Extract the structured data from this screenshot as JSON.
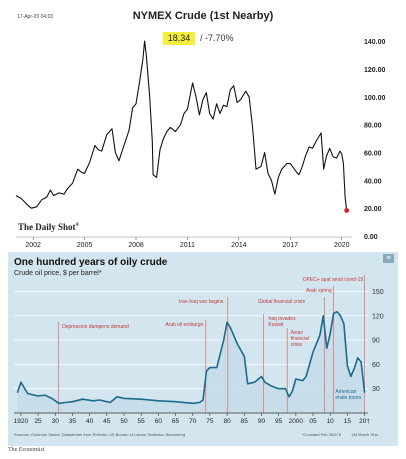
{
  "top": {
    "date": "17-Apr-20 04:03",
    "title": "NYMEX Crude (1st Nearby)",
    "last": "18.34",
    "change": "/ -7.70%",
    "watermark": "The Daily Shot",
    "watermark_tm": "®"
  },
  "bottom": {
    "title": "One hundred years of oily crude",
    "subtitle": "Crude oil price, $ per barrel*",
    "source": "Sources: Goldman Sachs; Datastream from Refinitiv; US Bureau of Labour Statistics; Bloomberg",
    "footnote": "*Constant Feb 2020 $",
    "asof": "†At March 31st",
    "credit": "The Economist",
    "corner_mark": "≡"
  },
  "chart_data": [
    {
      "type": "line",
      "title": "NYMEX Crude (1st Nearby)",
      "x_ticks": [
        "2002",
        "2005",
        "2008",
        "2011",
        "2014",
        "2017",
        "2020"
      ],
      "y_ticks": [
        "0.00",
        "20.00",
        "40.00",
        "60.00",
        "80.00",
        "100.00",
        "120.00",
        "140.00"
      ],
      "xlim": [
        2001.0,
        2020.6
      ],
      "ylim": [
        0,
        148
      ],
      "grid": false,
      "colors": {
        "line": "#111111",
        "highlight": "#f5ee3c",
        "last_point": "#d21e1e"
      },
      "series": [
        {
          "x": [
            2001.0,
            2001.3,
            2001.7,
            2001.9,
            2002.2,
            2002.5,
            2002.8,
            2003.0,
            2003.2,
            2003.5,
            2003.8,
            2004.0,
            2004.3,
            2004.6,
            2004.8,
            2005.0,
            2005.3,
            2005.6,
            2005.8,
            2006.0,
            2006.3,
            2006.6,
            2006.8,
            2007.0,
            2007.3,
            2007.6,
            2007.8,
            2008.0,
            2008.2,
            2008.4,
            2008.5,
            2008.6,
            2008.8,
            2008.95,
            2009.0,
            2009.2,
            2009.4,
            2009.6,
            2009.8,
            2010.0,
            2010.3,
            2010.6,
            2010.8,
            2011.0,
            2011.3,
            2011.5,
            2011.7,
            2011.9,
            2012.1,
            2012.3,
            2012.5,
            2012.7,
            2012.9,
            2013.1,
            2013.3,
            2013.5,
            2013.7,
            2013.9,
            2014.1,
            2014.4,
            2014.6,
            2014.8,
            2015.0,
            2015.3,
            2015.5,
            2015.7,
            2015.9,
            2016.1,
            2016.3,
            2016.5,
            2016.8,
            2017.0,
            2017.3,
            2017.5,
            2017.7,
            2017.9,
            2018.1,
            2018.3,
            2018.5,
            2018.8,
            2018.95,
            2019.1,
            2019.3,
            2019.5,
            2019.7,
            2019.9,
            2020.0,
            2020.1,
            2020.2,
            2020.29
          ],
          "y": [
            29,
            27,
            22,
            20,
            21,
            26,
            28,
            33,
            29,
            31,
            30,
            34,
            38,
            48,
            46,
            45,
            53,
            65,
            62,
            61,
            73,
            77,
            60,
            54,
            65,
            76,
            92,
            95,
            110,
            127,
            140,
            130,
            100,
            68,
            44,
            42,
            62,
            70,
            75,
            78,
            75,
            80,
            88,
            91,
            110,
            100,
            87,
            98,
            103,
            88,
            84,
            95,
            88,
            94,
            93,
            105,
            108,
            96,
            98,
            104,
            100,
            78,
            48,
            50,
            60,
            45,
            40,
            30,
            42,
            48,
            52,
            52,
            47,
            44,
            50,
            58,
            64,
            63,
            68,
            74,
            48,
            57,
            63,
            57,
            56,
            61,
            59,
            52,
            28,
            18.34
          ]
        }
      ]
    },
    {
      "type": "area",
      "title": "One hundred years of oily crude",
      "subtitle": "Crude oil price, $ per barrel*",
      "x_ticks": [
        "1920",
        "25",
        "30",
        "35",
        "40",
        "45",
        "50",
        "55",
        "60",
        "65",
        "70",
        "75",
        "80",
        "85",
        "90",
        "95",
        "2000",
        "05",
        "10",
        "15",
        "20†"
      ],
      "y_ticks": [
        "30",
        "60",
        "90",
        "120",
        "150"
      ],
      "xlim": [
        1918,
        2021
      ],
      "ylim": [
        0,
        158
      ],
      "grid": true,
      "colors": {
        "line": "#1c6a8c",
        "area": "#c5dde9",
        "annotation": "#e06868",
        "background": "#d3e5ee"
      },
      "annotations": [
        "Depression dampens demand",
        "Arab oil embargo",
        "Iran-Iraq war begins",
        "Global financial crisis",
        "Iraq invades Kuwait",
        "Asian financial crisis",
        "OPEC+ spat amid covid-19",
        "Arab spring",
        "American shale boom"
      ],
      "series": [
        {
          "x": [
            1919,
            1920,
            1922,
            1925,
            1927,
            1929,
            1931,
            1933,
            1935,
            1938,
            1941,
            1943,
            1946,
            1948,
            1950,
            1955,
            1960,
            1965,
            1970,
            1972,
            1973,
            1974,
            1975,
            1977,
            1979,
            1980,
            1981,
            1983,
            1985,
            1986,
            1988,
            1990,
            1991,
            1993,
            1995,
            1997,
            1998,
            1999,
            2000,
            2002,
            2003,
            2005,
            2007,
            2008,
            2009,
            2010,
            2011,
            2012,
            2013,
            2014,
            2015,
            2016,
            2017,
            2018,
            2019,
            2020
          ],
          "y": [
            25,
            38,
            24,
            21,
            22,
            18,
            12,
            13,
            14,
            17,
            15,
            16,
            13,
            20,
            18,
            17,
            15,
            14,
            12,
            13,
            16,
            52,
            56,
            56,
            90,
            112,
            105,
            85,
            70,
            36,
            38,
            45,
            38,
            33,
            30,
            30,
            20,
            27,
            42,
            40,
            45,
            75,
            96,
            120,
            80,
            98,
            123,
            125,
            120,
            110,
            58,
            45,
            55,
            68,
            63,
            25
          ]
        }
      ]
    }
  ]
}
